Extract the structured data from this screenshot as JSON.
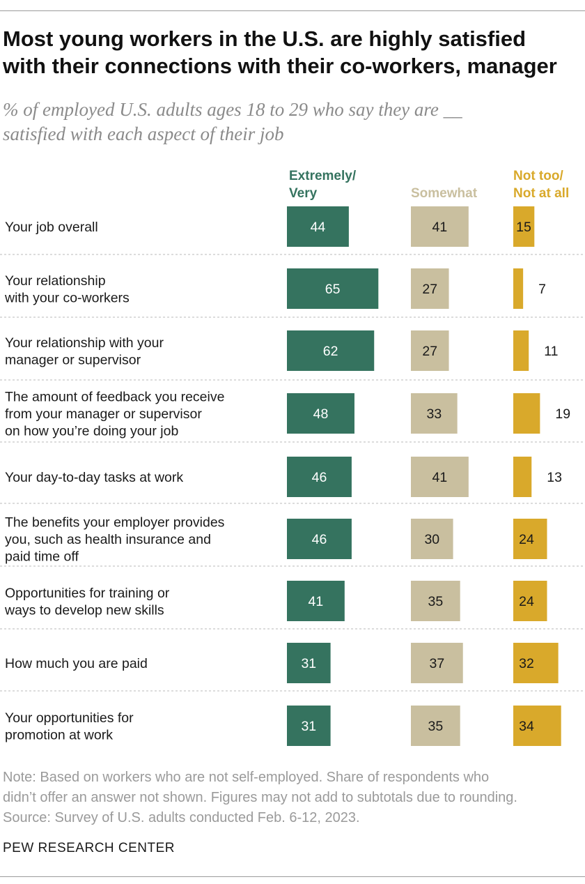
{
  "title": "Most young workers in the U.S. are highly satisfied\nwith their connections with their co-workers, manager",
  "subtitle": "% of employed U.S. adults ages 18 to 29 who say they are __\nsatisfied with each aspect of their job",
  "note": "Note: Based on workers who are not self-employed. Share of respondents who\ndidn’t offer an answer not shown. Figures may not add to subtotals due to rounding.",
  "source": "Source: Survey of U.S. adults conducted Feb. 6-12, 2023.",
  "organization": "PEW RESEARCH CENTER",
  "colors": {
    "extremely_very": "#35735f",
    "somewhat": "#c9bf9f",
    "not_too_not_at_all": "#d9a92b"
  },
  "chart_data": {
    "type": "bar",
    "categories": [
      "Your job overall",
      "Your relationship\nwith your co-workers",
      "Your relationship with your\nmanager or supervisor",
      "The amount of feedback you receive\nfrom your manager or supervisor\non how you’re doing your job",
      "Your day-to-day tasks at work",
      "The benefits your employer provides\nyou, such as health insurance and\npaid time off",
      "Opportunities for training or\nways to develop new skills",
      "How much you are paid",
      "Your opportunities for\npromotion at work"
    ],
    "series": [
      {
        "name": "Extremely/\nVery",
        "values": [
          44,
          65,
          62,
          48,
          46,
          46,
          41,
          31,
          31
        ]
      },
      {
        "name": "Somewhat",
        "values": [
          41,
          27,
          27,
          33,
          41,
          30,
          35,
          37,
          35
        ]
      },
      {
        "name": "Not too/\nNot at all",
        "values": [
          15,
          7,
          11,
          19,
          13,
          24,
          24,
          32,
          34
        ]
      }
    ]
  }
}
